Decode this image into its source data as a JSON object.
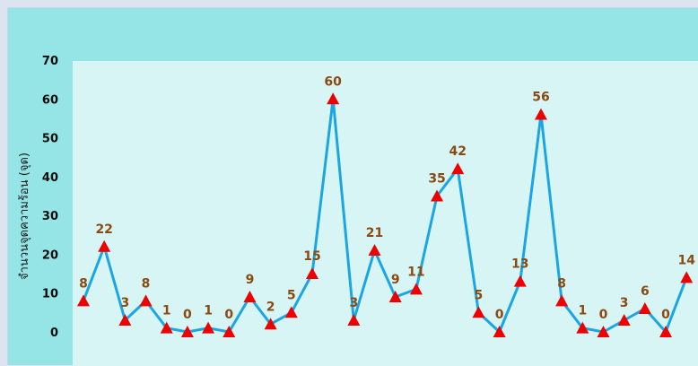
{
  "chart_data": {
    "type": "line",
    "title": "",
    "xlabel": "",
    "ylabel": "จำนวนจุดความร้อน (จุด)",
    "ylim": [
      0,
      70
    ],
    "yticks": [
      0,
      10,
      20,
      30,
      40,
      50,
      60,
      70
    ],
    "grid": false,
    "legend": "none",
    "values": [
      8,
      22,
      3,
      8,
      1,
      0,
      1,
      0,
      9,
      2,
      5,
      15,
      60,
      3,
      21,
      9,
      11,
      35,
      42,
      5,
      0,
      13,
      56,
      8,
      1,
      0,
      3,
      6,
      0,
      14
    ],
    "colors": {
      "line": "#1ba6e3",
      "marker": "#ee0000",
      "data_label": "#8a4a12",
      "plot_background": "#d8f5f5",
      "panel_background": "#95e4e6"
    }
  }
}
